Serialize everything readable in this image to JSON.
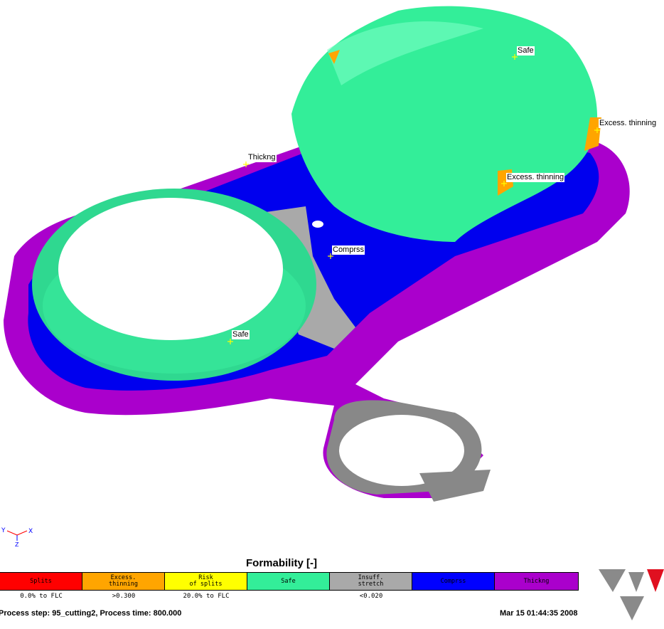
{
  "viewport": {
    "labels": [
      {
        "text": "Safe"
      },
      {
        "text": "Excess. thinning"
      },
      {
        "text": "Thickng"
      },
      {
        "text": "Excess. thinning"
      },
      {
        "text": "Comprss"
      },
      {
        "text": "Safe"
      }
    ],
    "axis": {
      "x": "X",
      "y": "Y",
      "z": "Z"
    }
  },
  "legend": {
    "title": "Formability [-]",
    "items": [
      {
        "label": "Splits",
        "color": "#ff0000",
        "range": "0.0% to FLC"
      },
      {
        "label": "Excess.\nthinning",
        "color": "#ffa500",
        "range": ">0.300"
      },
      {
        "label": "Risk\nof splits",
        "color": "#ffff00",
        "range": "20.0% to FLC"
      },
      {
        "label": "Safe",
        "color": "#33ee99",
        "range": ""
      },
      {
        "label": "Insuff.\nstretch",
        "color": "#a9a9a9",
        "range": "<0.020"
      },
      {
        "label": "Comprss",
        "color": "#0000ff",
        "range": ""
      },
      {
        "label": "Thickng",
        "color": "#aa00cc",
        "range": ""
      }
    ]
  },
  "status": {
    "process": "Process step: 95_cutting2, Process time: 800.000",
    "timestamp": "Mar 15 01:44:35 2008"
  },
  "logo": {
    "icon": "autoform-logo-icon"
  }
}
